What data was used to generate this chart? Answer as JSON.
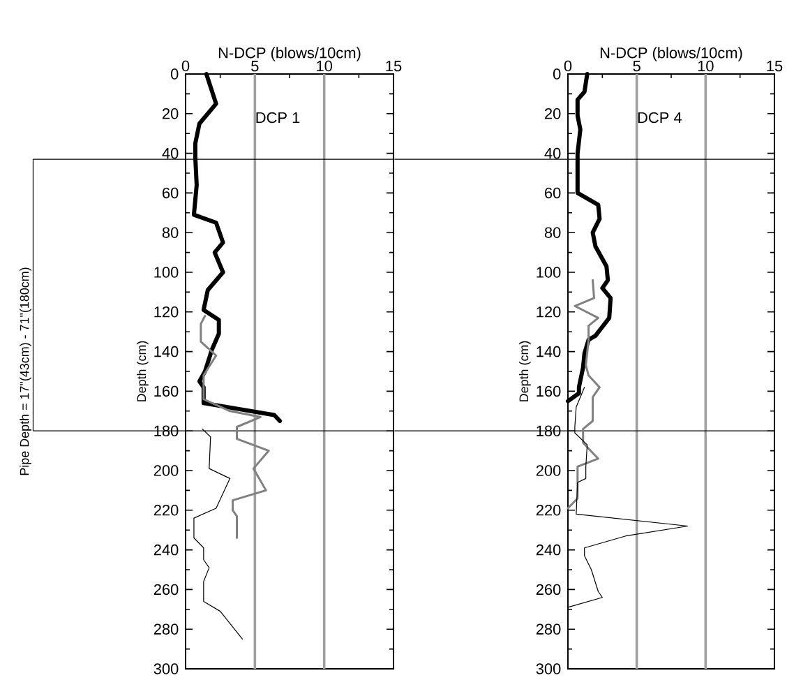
{
  "chart_data": [
    {
      "type": "line",
      "xlabel": "N-DCP (blows/10cm)",
      "ylabel": "Depth (cm)",
      "annotations": [
        "DCP 1",
        "Pipe Depth = 17\"(43cm) - 71\"(180cm)"
      ],
      "xlim": [
        0,
        15
      ],
      "xticks": [
        0,
        5,
        10,
        15
      ],
      "ylim": [
        300,
        0
      ],
      "yticks": [
        0,
        20,
        40,
        60,
        80,
        100,
        120,
        140,
        160,
        180,
        200,
        220,
        240,
        260,
        280,
        300
      ],
      "ref_lines": [
        {
          "axis": "x",
          "value": 5,
          "color": "#a0a0a0"
        },
        {
          "axis": "x",
          "value": 10,
          "color": "#a0a0a0"
        },
        {
          "axis": "y",
          "value": 43,
          "color": "#000000"
        },
        {
          "axis": "y",
          "value": 180,
          "color": "#000000"
        }
      ],
      "series": [
        {
          "color": "#000000",
          "x": [
            1.5,
            2.2,
            1.0,
            0.7,
            0.7,
            0.8,
            0.6,
            2.2,
            2.7,
            2.1,
            2.7,
            1.6,
            1.3,
            2.4,
            2.4,
            1.9,
            1.4,
            1.0,
            1.3,
            1.3,
            6.4,
            6.8
          ],
          "values": [
            0,
            15,
            25,
            35,
            42,
            56,
            71,
            75,
            85,
            90,
            100,
            109,
            119,
            124,
            131,
            139,
            150,
            155,
            158,
            166,
            172,
            175
          ]
        },
        {
          "color": "#808080",
          "x": [
            1.4,
            1.1,
            1.1,
            2.2,
            1.3,
            1.3,
            3.2,
            5.4,
            3.7,
            3.7,
            6.0,
            4.9,
            5.8,
            3.4,
            3.4,
            3.7,
            3.7
          ],
          "values": [
            122,
            126,
            135,
            142,
            152,
            164,
            170,
            173,
            178,
            184,
            190,
            199,
            210,
            215,
            220,
            223,
            234
          ]
        },
        {
          "color": "#000000",
          "x": [
            1.2,
            1.8,
            1.7,
            3.2,
            2.2,
            0.6,
            0.6,
            1.3,
            1.3,
            1.7,
            1.3,
            1.3,
            2.5,
            4.1
          ],
          "values": [
            179,
            183,
            199,
            204,
            219,
            224,
            234,
            239,
            245,
            249,
            256,
            266,
            271,
            285
          ]
        }
      ]
    },
    {
      "type": "line",
      "xlabel": "N-DCP (blows/10cm)",
      "ylabel": "Depth (cm)",
      "annotations": [
        "DCP 4"
      ],
      "xlim": [
        0,
        15
      ],
      "xticks": [
        0,
        5,
        10,
        15
      ],
      "ylim": [
        300,
        0
      ],
      "yticks": [
        0,
        20,
        40,
        60,
        80,
        100,
        120,
        140,
        160,
        180,
        200,
        220,
        240,
        260,
        280,
        300
      ],
      "ref_lines": [
        {
          "axis": "x",
          "value": 5,
          "color": "#a0a0a0"
        },
        {
          "axis": "x",
          "value": 10,
          "color": "#a0a0a0"
        },
        {
          "axis": "y",
          "value": 43,
          "color": "#000000"
        },
        {
          "axis": "y",
          "value": 180,
          "color": "#000000"
        }
      ],
      "series": [
        {
          "color": "#000000",
          "x": [
            1.4,
            1.2,
            0.7,
            0.7,
            0.9,
            0.7,
            0.7,
            2.2,
            2.3,
            1.8,
            2.0,
            2.8,
            2.9,
            2.5,
            3.1,
            3.0,
            2.0,
            1.5,
            1.2,
            1.1,
            0.8,
            0.8,
            0
          ],
          "values": [
            0,
            9,
            13,
            21,
            28,
            40,
            60,
            66,
            73,
            80,
            87,
            97,
            104,
            108,
            113,
            123,
            132,
            134,
            141,
            148,
            158,
            161,
            165
          ]
        },
        {
          "color": "#808080",
          "x": [
            1.8,
            1.9,
            0.5,
            2.2,
            1.5,
            1.5,
            1.3,
            1.5,
            2.3,
            1.8,
            1.8,
            1.1,
            1.1,
            2.2,
            0.7,
            0.7,
            0
          ],
          "values": [
            104,
            113,
            117,
            123,
            127,
            134,
            147,
            152,
            158,
            163,
            175,
            179,
            186,
            194,
            198,
            214,
            219
          ]
        },
        {
          "color": "#000000",
          "x": [
            1.2,
            0.6,
            0.5,
            0.5,
            1.4,
            1.3,
            1.3,
            0.7,
            0.6,
            8.7,
            4.2,
            1.2,
            1.2,
            1.7,
            2.2,
            2.5,
            0
          ],
          "values": [
            158,
            168,
            178,
            181,
            187,
            198,
            204,
            206,
            222,
            228,
            233,
            239,
            243,
            250,
            261,
            264,
            269
          ]
        }
      ]
    }
  ]
}
